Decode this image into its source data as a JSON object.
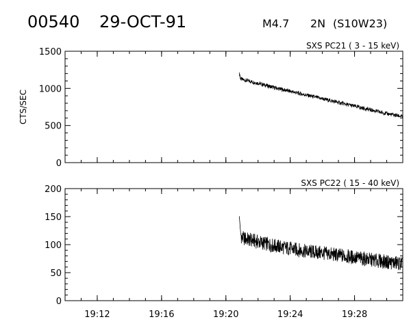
{
  "header": {
    "event_id": "00540",
    "date": "29-OCT-91",
    "flare_class": "M4.7",
    "optical_class": "2N",
    "location": "(S10W23)"
  },
  "chart_data": [
    {
      "type": "line",
      "title": "SXS PC21  (  3 - 15 keV)",
      "ylabel": "CTS/SEC",
      "ylim": [
        0,
        1500
      ],
      "yticks": [
        0,
        500,
        1000,
        1500
      ],
      "xlim": [
        "19:10",
        "19:31"
      ],
      "xticks": [
        "19:12",
        "19:16",
        "19:20",
        "19:24",
        "19:28"
      ],
      "show_xtick_labels": false,
      "series": [
        {
          "x": [
            "19:20:50",
            "19:21",
            "19:22",
            "19:23",
            "19:24",
            "19:25",
            "19:26",
            "19:27",
            "19:28",
            "19:29",
            "19:30",
            "19:31"
          ],
          "values": [
            1150,
            1120,
            1070,
            1010,
            960,
            910,
            860,
            810,
            760,
            710,
            660,
            620
          ]
        }
      ]
    },
    {
      "type": "line",
      "title": "SXS PC22  ( 15 - 40 keV)",
      "ylabel": "",
      "ylim": [
        0,
        200
      ],
      "yticks": [
        0,
        50,
        100,
        150,
        200
      ],
      "xlim": [
        "19:10",
        "19:31"
      ],
      "xticks": [
        "19:12",
        "19:16",
        "19:20",
        "19:24",
        "19:28"
      ],
      "show_xtick_labels": true,
      "series": [
        {
          "x": [
            "19:20:50",
            "19:21",
            "19:22",
            "19:23",
            "19:24",
            "19:25",
            "19:26",
            "19:27",
            "19:28",
            "19:29",
            "19:30",
            "19:31"
          ],
          "values": [
            125,
            112,
            105,
            98,
            93,
            88,
            85,
            81,
            77,
            73,
            69,
            66
          ]
        }
      ]
    }
  ]
}
